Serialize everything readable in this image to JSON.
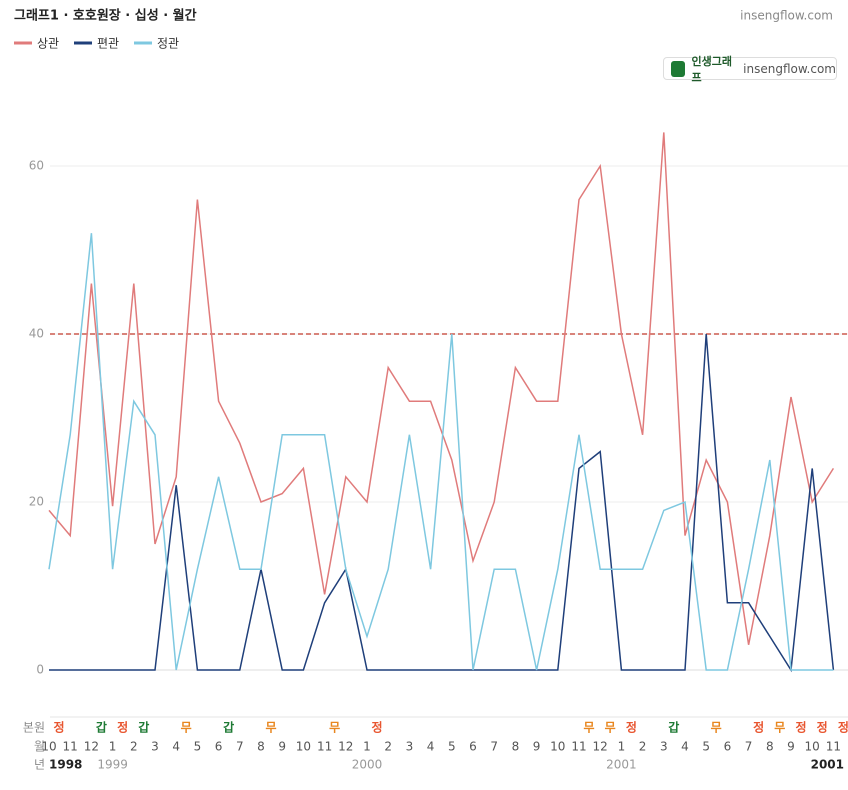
{
  "chart_data": {
    "type": "line",
    "title": "그래프1 · 호호원장 · 십성 · 월간",
    "source": "insengflow.com",
    "badge": {
      "name": "인생그래프",
      "site": "insengflow.com"
    },
    "row_labels": {
      "stems": "본원",
      "months": "월",
      "years": "년"
    },
    "categories": [
      "10",
      "11",
      "12",
      "1",
      "2",
      "3",
      "4",
      "5",
      "6",
      "7",
      "8",
      "9",
      "10",
      "11",
      "12",
      "1",
      "2",
      "3",
      "4",
      "5",
      "6",
      "7",
      "8",
      "9",
      "10",
      "11",
      "12",
      "1",
      "2",
      "3",
      "4",
      "5",
      "6",
      "7",
      "8",
      "9",
      "10",
      "11"
    ],
    "years": [
      "1998",
      null,
      null,
      "1999",
      null,
      null,
      null,
      null,
      null,
      null,
      null,
      null,
      null,
      null,
      null,
      "2000",
      null,
      null,
      null,
      null,
      null,
      null,
      null,
      null,
      null,
      null,
      null,
      "2001",
      null,
      null,
      null,
      null,
      null,
      null,
      null,
      null,
      null,
      null
    ],
    "current_year": "2001",
    "stems": [
      "정",
      null,
      "갑",
      "정",
      "갑",
      null,
      "무",
      null,
      "갑",
      null,
      "무",
      null,
      null,
      "무",
      null,
      "정",
      null,
      null,
      null,
      null,
      null,
      null,
      null,
      null,
      null,
      "무",
      "무",
      "정",
      null,
      "갑",
      null,
      "무",
      null,
      "정",
      "무",
      "정",
      "정",
      "정"
    ],
    "stem_colors": {
      "정": "#e8552f",
      "갑": "#1e7a34",
      "무": "#e8861e"
    },
    "series": [
      {
        "name": "상관",
        "color": "#e07b7b",
        "values": [
          19,
          16,
          46,
          19.5,
          46,
          15,
          23,
          56,
          32,
          27,
          20,
          21,
          24,
          9,
          23,
          20,
          36,
          32,
          32,
          25,
          13,
          20,
          36,
          32,
          32,
          56,
          60,
          40,
          28,
          64,
          16,
          25,
          20,
          3,
          16,
          32.5,
          20,
          24
        ]
      },
      {
        "name": "편관",
        "color": "#1f3f7a",
        "values": [
          0,
          0,
          0,
          0,
          0,
          0,
          22,
          0,
          0,
          0,
          12,
          0,
          0,
          8,
          12,
          0,
          0,
          0,
          0,
          0,
          0,
          0,
          0,
          0,
          0,
          24,
          26,
          0,
          0,
          0,
          0,
          40,
          8,
          8,
          4,
          0,
          24,
          0
        ]
      },
      {
        "name": "정관",
        "color": "#7ec8e0",
        "values": [
          12,
          28,
          52,
          12,
          32,
          28,
          0,
          12,
          23,
          12,
          12,
          28,
          28,
          28,
          12,
          4,
          12,
          28,
          12,
          40,
          0,
          12,
          12,
          0,
          12,
          28,
          12,
          12,
          12,
          19,
          20,
          0,
          0,
          12,
          25,
          0,
          0,
          0
        ]
      }
    ],
    "reference_line": {
      "value": 40,
      "color": "#c0392b"
    },
    "ylim": [
      -4,
      69
    ],
    "yticks": [
      0,
      20,
      40,
      60
    ],
    "grid": true
  }
}
